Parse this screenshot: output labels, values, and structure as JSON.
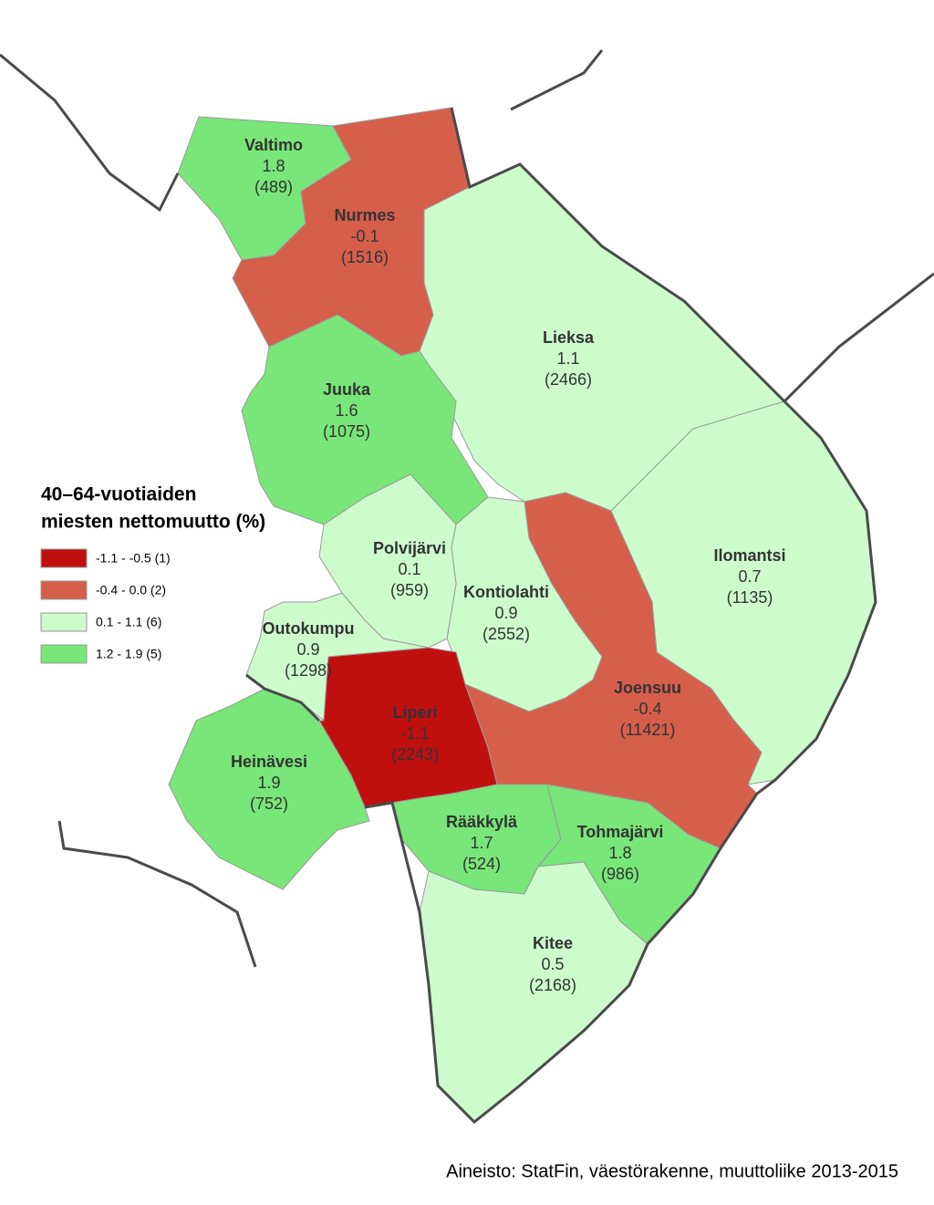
{
  "legend": {
    "title": [
      "40–64-vuotiaiden",
      "miesten nettomuutto (%)"
    ],
    "items": [
      {
        "label": "-1.1 - -0.5 (1)",
        "color": "#c00f0f"
      },
      {
        "label": "-0.4 - 0.0 (2)",
        "color": "#d65f4b"
      },
      {
        "label": "0.1 - 1.1 (6)",
        "color": "#ccfccc"
      },
      {
        "label": "1.2 - 1.9 (5)",
        "color": "#78e678"
      }
    ]
  },
  "regions": [
    {
      "name": "Valtimo",
      "value": "1.8",
      "count": "(489)",
      "color": "#78e678"
    },
    {
      "name": "Nurmes",
      "value": "-0.1",
      "count": "(1516)",
      "color": "#d65f4b"
    },
    {
      "name": "Lieksa",
      "value": "1.1",
      "count": "(2466)",
      "color": "#ccfccc"
    },
    {
      "name": "Juuka",
      "value": "1.6",
      "count": "(1075)",
      "color": "#78e678"
    },
    {
      "name": "Polvijärvi",
      "value": "0.1",
      "count": "(959)",
      "color": "#ccfccc"
    },
    {
      "name": "Kontiolahti",
      "value": "0.9",
      "count": "(2552)",
      "color": "#ccfccc"
    },
    {
      "name": "Ilomantsi",
      "value": "0.7",
      "count": "(1135)",
      "color": "#ccfccc"
    },
    {
      "name": "Outokumpu",
      "value": "0.9",
      "count": "(1298)",
      "color": "#ccfccc"
    },
    {
      "name": "Liperi",
      "value": "-1.1",
      "count": "(2243)",
      "color": "#c00f0f"
    },
    {
      "name": "Joensuu",
      "value": "-0.4",
      "count": "(11421)",
      "color": "#d65f4b"
    },
    {
      "name": "Heinävesi",
      "value": "1.9",
      "count": "(752)",
      "color": "#78e678"
    },
    {
      "name": "Rääkkylä",
      "value": "1.7",
      "count": "(524)",
      "color": "#78e678"
    },
    {
      "name": "Tohmajärvi",
      "value": "1.8",
      "count": "(986)",
      "color": "#78e678"
    },
    {
      "name": "Kitee",
      "value": "0.5",
      "count": "(2168)",
      "color": "#ccfccc"
    }
  ],
  "source": "Aineisto: StatFin, väestörakenne, muuttoliike 2013-2015"
}
